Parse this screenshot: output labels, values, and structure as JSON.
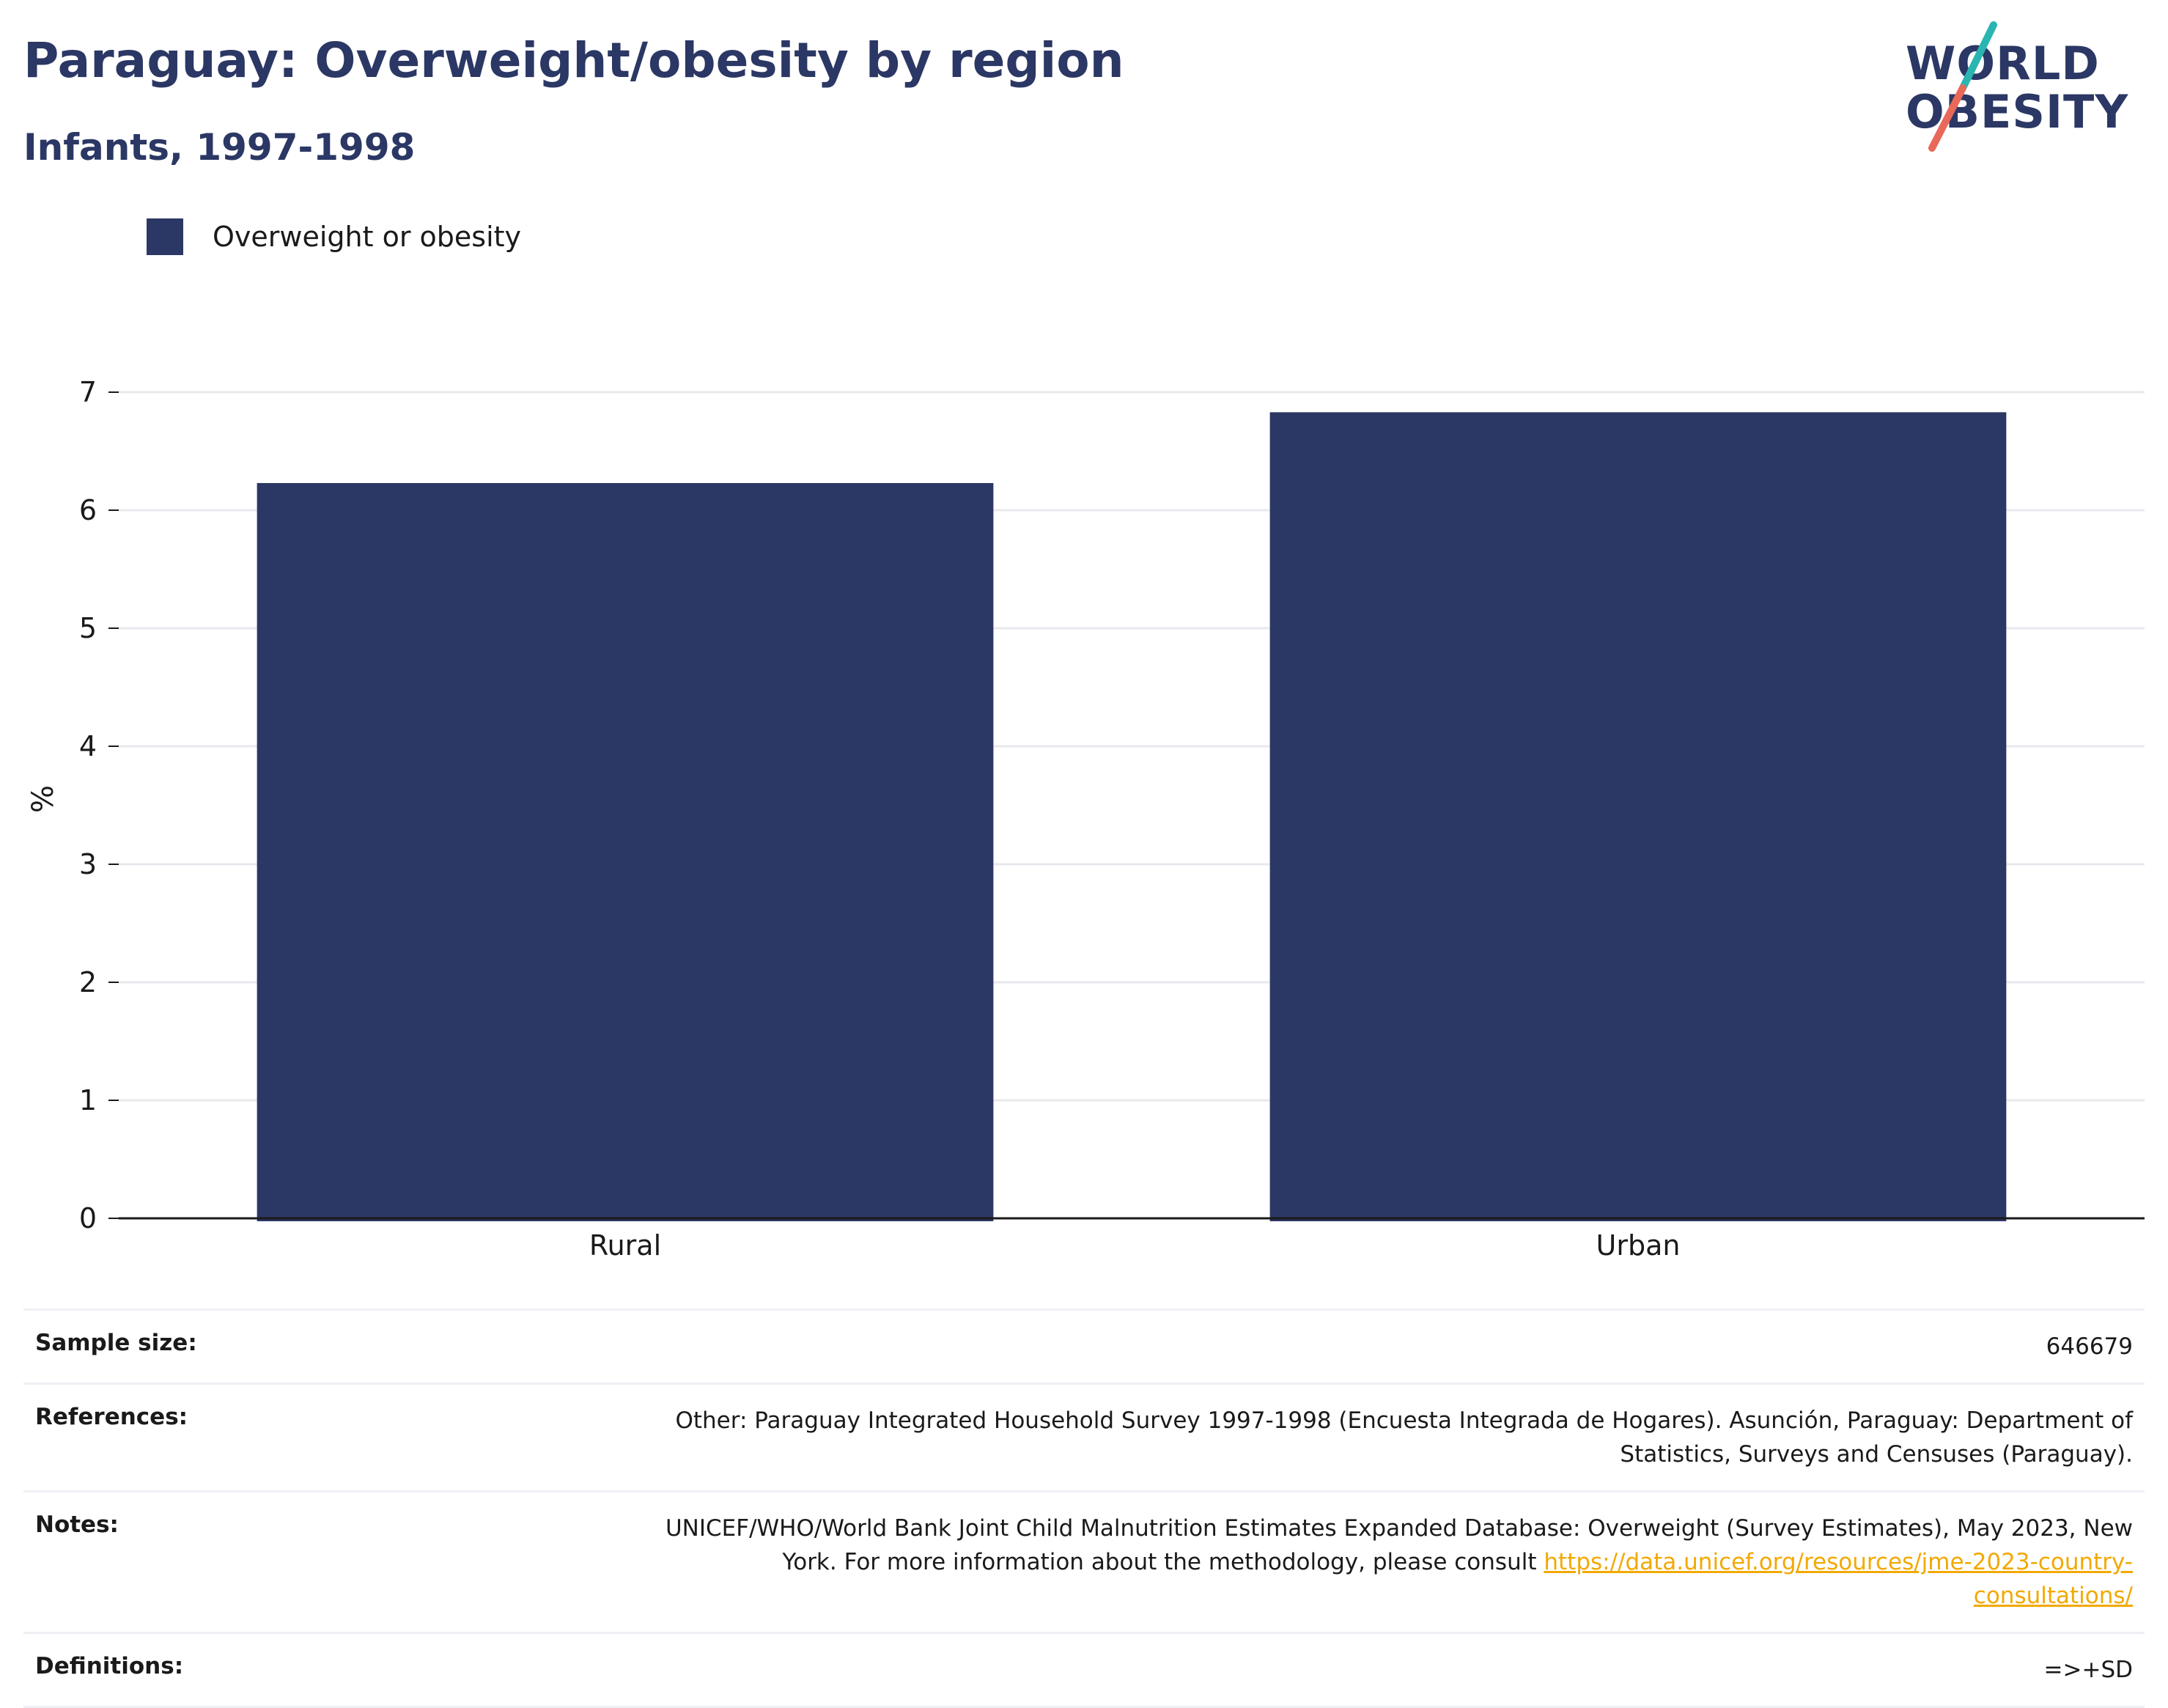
{
  "header": {
    "title": "Paraguay: Overweight/obesity by region",
    "subtitle": "Infants, 1997-1998"
  },
  "logo": {
    "line1": "WORLD",
    "line2": "OBESITY",
    "colors": {
      "text": "#2b3764",
      "slash_top": "#2bb5b0",
      "slash_bottom": "#e8685a"
    }
  },
  "legend": {
    "label": "Overweight or obesity",
    "color": "#2b3764"
  },
  "chart_data": {
    "type": "bar",
    "categories": [
      "Rural",
      "Urban"
    ],
    "series": [
      {
        "name": "Overweight or obesity",
        "values": [
          6.23,
          6.83
        ],
        "color": "#2b3764"
      }
    ],
    "ylabel": "%",
    "xlabel": "",
    "ylim": [
      0,
      7
    ],
    "yticks": [
      0,
      1,
      2,
      3,
      4,
      5,
      6,
      7
    ],
    "grid": true,
    "legend_position": "top-left"
  },
  "info": {
    "sample_size_label": "Sample size:",
    "sample_size_value": "646679",
    "references_label": "References:",
    "references_value": "Other: Paraguay Integrated Household Survey 1997-1998 (Encuesta Integrada de Hogares). Asunción, Paraguay: Department of Statistics, Surveys and Censuses (Paraguay).",
    "notes_label": "Notes:",
    "notes_value": "UNICEF/WHO/World Bank Joint Child Malnutrition Estimates Expanded Database: Overweight (Survey Estimates), May 2023, New York. For more information about the methodology, please consult",
    "notes_link": "https://data.unicef.org/resources/jme-2023-country-consultations/",
    "definitions_label": "Definitions:",
    "definitions_value": "=>+SD"
  }
}
